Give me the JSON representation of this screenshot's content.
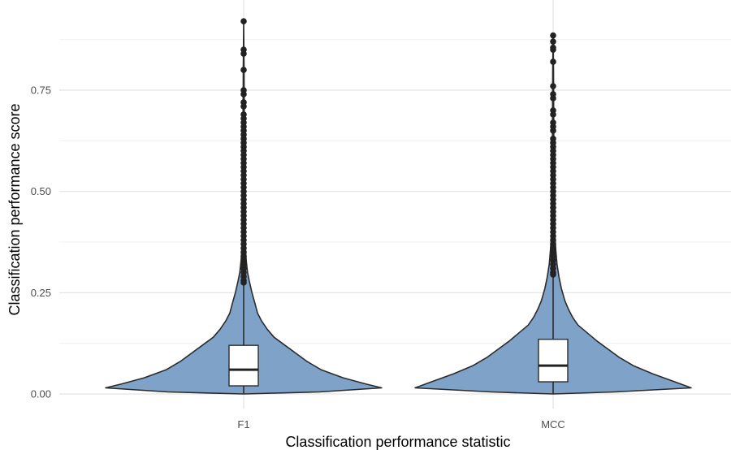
{
  "chart_data": {
    "type": "violin",
    "xlabel": "Classification performance statistic",
    "ylabel": "Classification performance score",
    "categories": [
      "F1",
      "MCC"
    ],
    "ylim": [
      -0.02,
      0.94
    ],
    "yticks": [
      0.0,
      0.25,
      0.5,
      0.75
    ],
    "ytick_labels": [
      "0.00",
      "0.25",
      "0.50",
      "0.75"
    ],
    "grid": true,
    "fill_color": "#7fa3c8",
    "outline_color": "#2b2b2b",
    "box_fill": "#ffffff",
    "series": [
      {
        "category": "F1",
        "box": {
          "q1": 0.02,
          "median": 0.06,
          "q3": 0.12,
          "whisker_low": 0.0,
          "whisker_high": 0.27
        },
        "density": [
          [
            0.0,
            0.0
          ],
          [
            0.005,
            0.55
          ],
          [
            0.015,
            1.0
          ],
          [
            0.025,
            0.88
          ],
          [
            0.04,
            0.72
          ],
          [
            0.06,
            0.56
          ],
          [
            0.08,
            0.46
          ],
          [
            0.1,
            0.38
          ],
          [
            0.12,
            0.3
          ],
          [
            0.14,
            0.22
          ],
          [
            0.16,
            0.17
          ],
          [
            0.18,
            0.13
          ],
          [
            0.2,
            0.1
          ],
          [
            0.22,
            0.085
          ],
          [
            0.25,
            0.06
          ],
          [
            0.28,
            0.04
          ],
          [
            0.3,
            0.028
          ],
          [
            0.33,
            0.018
          ],
          [
            0.36,
            0.013
          ],
          [
            0.4,
            0.009
          ],
          [
            0.45,
            0.007
          ],
          [
            0.5,
            0.006
          ],
          [
            0.6,
            0.005
          ],
          [
            0.7,
            0.004
          ],
          [
            0.8,
            0.003
          ],
          [
            0.92,
            0.0
          ]
        ],
        "outliers": [
          0.92,
          0.85,
          0.84,
          0.8,
          0.75,
          0.74,
          0.72,
          0.71,
          0.69,
          0.68,
          0.67,
          0.66,
          0.65,
          0.64,
          0.63,
          0.62,
          0.61,
          0.6,
          0.59,
          0.58,
          0.57,
          0.56,
          0.55,
          0.54,
          0.53,
          0.52,
          0.51,
          0.5,
          0.49,
          0.48,
          0.47,
          0.46,
          0.45,
          0.44,
          0.43,
          0.42,
          0.41,
          0.4,
          0.39,
          0.38,
          0.37,
          0.36,
          0.35,
          0.34,
          0.33,
          0.32,
          0.31,
          0.3,
          0.29,
          0.28,
          0.275
        ]
      },
      {
        "category": "MCC",
        "box": {
          "q1": 0.03,
          "median": 0.07,
          "q3": 0.135,
          "whisker_low": 0.0,
          "whisker_high": 0.29
        },
        "density": [
          [
            0.0,
            0.0
          ],
          [
            0.005,
            0.45
          ],
          [
            0.015,
            1.0
          ],
          [
            0.03,
            0.88
          ],
          [
            0.05,
            0.72
          ],
          [
            0.07,
            0.58
          ],
          [
            0.09,
            0.48
          ],
          [
            0.11,
            0.4
          ],
          [
            0.13,
            0.32
          ],
          [
            0.15,
            0.25
          ],
          [
            0.17,
            0.18
          ],
          [
            0.19,
            0.14
          ],
          [
            0.21,
            0.11
          ],
          [
            0.23,
            0.085
          ],
          [
            0.26,
            0.06
          ],
          [
            0.29,
            0.042
          ],
          [
            0.32,
            0.028
          ],
          [
            0.36,
            0.018
          ],
          [
            0.4,
            0.012
          ],
          [
            0.45,
            0.009
          ],
          [
            0.5,
            0.007
          ],
          [
            0.6,
            0.005
          ],
          [
            0.7,
            0.004
          ],
          [
            0.8,
            0.003
          ],
          [
            0.885,
            0.0
          ]
        ],
        "outliers": [
          0.885,
          0.87,
          0.855,
          0.85,
          0.82,
          0.76,
          0.74,
          0.73,
          0.7,
          0.69,
          0.67,
          0.66,
          0.65,
          0.63,
          0.62,
          0.61,
          0.6,
          0.59,
          0.58,
          0.57,
          0.56,
          0.55,
          0.54,
          0.53,
          0.52,
          0.51,
          0.5,
          0.49,
          0.48,
          0.47,
          0.46,
          0.45,
          0.44,
          0.43,
          0.42,
          0.41,
          0.4,
          0.39,
          0.38,
          0.37,
          0.36,
          0.35,
          0.34,
          0.33,
          0.32,
          0.31,
          0.3,
          0.295
        ]
      }
    ]
  }
}
